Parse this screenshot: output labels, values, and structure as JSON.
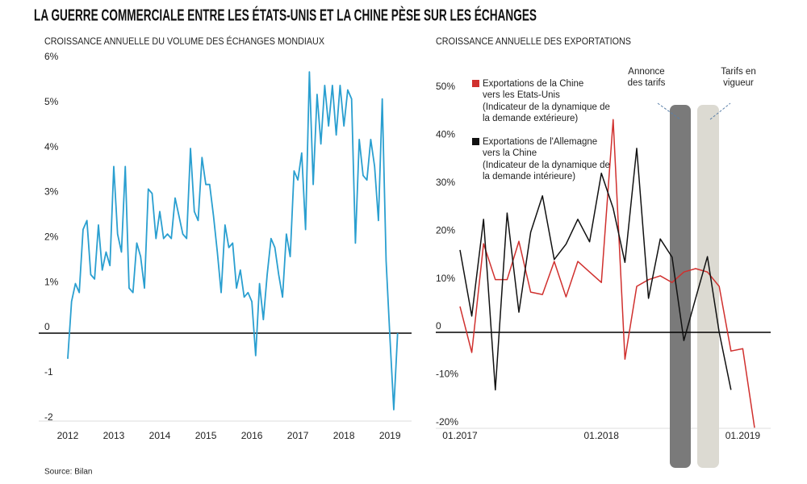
{
  "title": "LA GUERRE COMMERCIALE ENTRE LES ÉTATS-UNIS ET LA CHINE PÈSE SUR LES ÉCHANGES",
  "source": "Source: Bilan",
  "chart_data": [
    {
      "type": "line",
      "title": "CROISSANCE ANNUELLE DU VOLUME DES ÉCHANGES MONDIAUX",
      "color": "#2a9fd0",
      "x": [
        2012,
        2012.083,
        2012.167,
        2012.25,
        2012.333,
        2012.417,
        2012.5,
        2012.583,
        2012.667,
        2012.75,
        2012.833,
        2012.917,
        2013,
        2013.083,
        2013.167,
        2013.25,
        2013.333,
        2013.417,
        2013.5,
        2013.583,
        2013.667,
        2013.75,
        2013.833,
        2013.917,
        2014,
        2014.083,
        2014.167,
        2014.25,
        2014.333,
        2014.417,
        2014.5,
        2014.583,
        2014.667,
        2014.75,
        2014.833,
        2014.917,
        2015,
        2015.083,
        2015.167,
        2015.25,
        2015.333,
        2015.417,
        2015.5,
        2015.583,
        2015.667,
        2015.75,
        2015.833,
        2015.917,
        2016,
        2016.083,
        2016.167,
        2016.25,
        2016.333,
        2016.417,
        2016.5,
        2016.583,
        2016.667,
        2016.75,
        2016.833,
        2016.917,
        2017,
        2017.083,
        2017.167,
        2017.25,
        2017.333,
        2017.417,
        2017.5,
        2017.583,
        2017.667,
        2017.75,
        2017.833,
        2017.917,
        2018,
        2018.083,
        2018.167,
        2018.25,
        2018.333,
        2018.417,
        2018.5,
        2018.583,
        2018.667,
        2018.75,
        2018.833,
        2018.917,
        2019,
        2019.083,
        2019.167
      ],
      "values": [
        -0.57,
        0.7,
        1.1,
        0.9,
        2.3,
        2.5,
        1.3,
        1.2,
        2.4,
        1.4,
        1.8,
        1.5,
        3.7,
        2.2,
        1.8,
        3.7,
        1.0,
        0.9,
        2.0,
        1.7,
        1.0,
        3.2,
        3.1,
        2.1,
        2.7,
        2.1,
        2.2,
        2.1,
        3.0,
        2.6,
        2.2,
        2.1,
        4.1,
        2.7,
        2.5,
        3.9,
        3.3,
        3.3,
        2.6,
        1.8,
        0.9,
        2.4,
        1.9,
        2.0,
        1.0,
        1.4,
        0.8,
        0.9,
        0.7,
        -0.5,
        1.1,
        0.3,
        1.3,
        2.1,
        1.9,
        1.3,
        0.8,
        2.2,
        1.7,
        3.6,
        3.4,
        4.0,
        2.3,
        5.8,
        3.3,
        5.3,
        4.2,
        5.5,
        4.6,
        5.5,
        4.4,
        5.5,
        4.6,
        5.4,
        5.2,
        2.0,
        4.3,
        3.5,
        3.4,
        4.3,
        3.7,
        2.5,
        5.2,
        1.6,
        -0.1,
        -1.7,
        0.0
      ],
      "xlim": [
        2011.37,
        2019.47
      ],
      "xticks": [
        2012,
        2013,
        2014,
        2015,
        2016,
        2017,
        2018,
        2019
      ],
      "ylim": [
        -2.1,
        6.2
      ],
      "yticks": [
        {
          "value": 6,
          "label": "6%"
        },
        {
          "value": 5,
          "label": "5%"
        },
        {
          "value": 4,
          "label": "4%"
        },
        {
          "value": 3,
          "label": "3%"
        },
        {
          "value": 2,
          "label": "2%"
        },
        {
          "value": 1,
          "label": "1%"
        },
        0,
        -1,
        -2
      ]
    },
    {
      "type": "line",
      "title": "CROISSANCE ANNUELLE DES EXPORTATIONS",
      "categories": [
        "01.2017",
        null,
        null,
        null,
        null,
        null,
        null,
        null,
        null,
        null,
        null,
        null,
        "01.2018",
        null,
        null,
        null,
        null,
        null,
        null,
        null,
        null,
        null,
        null,
        null,
        "01.2019",
        null
      ],
      "series": [
        {
          "name": "Exportations de la Chine vers les Etats-Unis",
          "note": "(Indicateur de la dynamique de la demande extérieure)",
          "color": "#d0302e",
          "values": [
            5.4,
            -4.2,
            18.5,
            11,
            11,
            19,
            8.4,
            7.9,
            14.8,
            7.4,
            14.8,
            12.6,
            10.4,
            44.4,
            -5.6,
            9.6,
            11,
            11.8,
            10.4,
            12.6,
            13.3,
            12.6,
            9.6,
            -3.9,
            -3.4,
            -19.9
          ]
        },
        {
          "name": "Exportations de l'Allemagne vers la Chine",
          "note": "(Indicateur de la dynamique de la demande intérieure)",
          "color": "#111111",
          "values": [
            17.2,
            3.4,
            23.6,
            -12,
            24.9,
            4.2,
            20.9,
            28.5,
            15.2,
            18.4,
            23.6,
            18.9,
            33.2,
            25.9,
            14.6,
            38.4,
            7.1,
            19.5,
            15.7,
            -1.7,
            7.1,
            15.8,
            0,
            -12,
            null,
            null
          ]
        }
      ],
      "legend": "upper left",
      "annotations": [
        {
          "text": "Annonce des tarifs"
        },
        {
          "text": "Tarifs en vigueur"
        }
      ],
      "ylim": [
        -22,
        55
      ],
      "yticks": [
        {
          "value": 50,
          "label": "50%"
        },
        {
          "value": 40,
          "label": "40%"
        },
        {
          "value": 30,
          "label": "30%"
        },
        {
          "value": 20,
          "label": "20%"
        },
        {
          "value": 10,
          "label": "10%"
        },
        0,
        {
          "value": -10,
          "label": "-10%"
        },
        {
          "value": -20,
          "label": "-20%"
        }
      ]
    }
  ]
}
